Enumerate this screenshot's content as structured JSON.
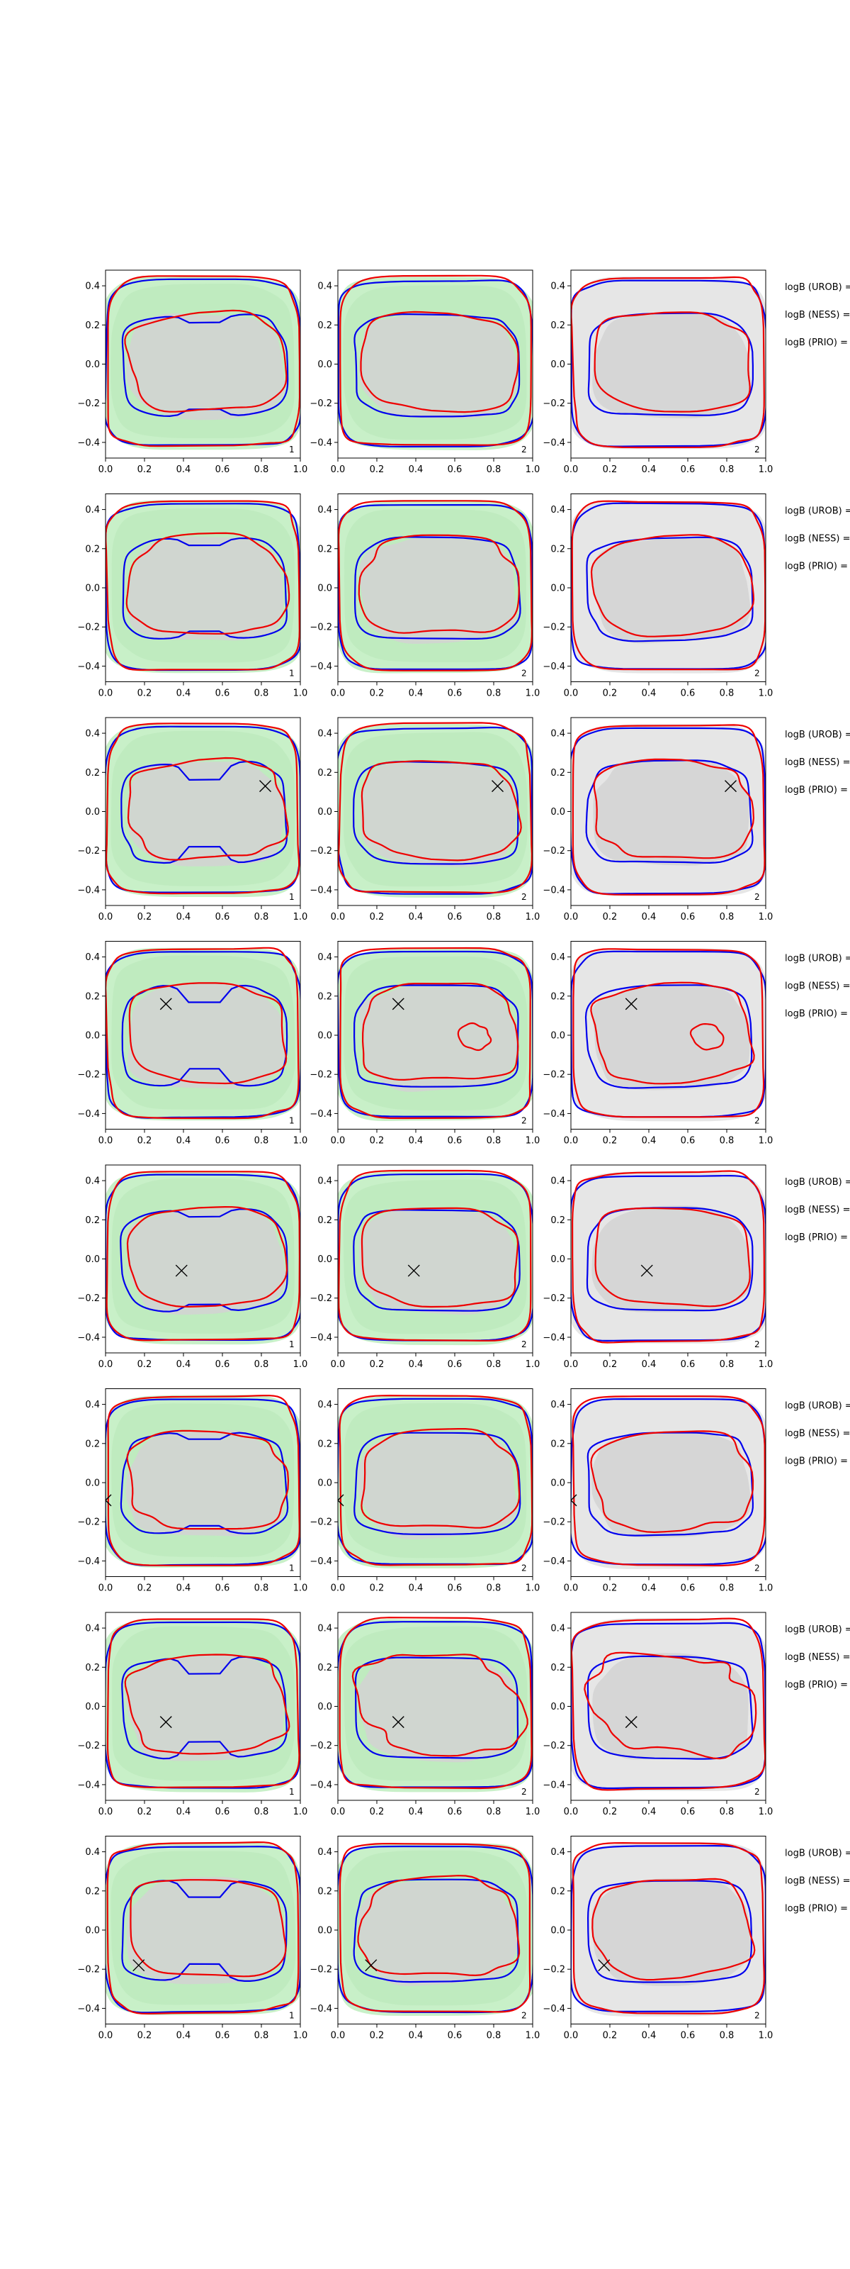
{
  "chart_data": {
    "type": "contour",
    "grid": {
      "rows": 8,
      "cols": 3
    },
    "x_ticks": [
      "0.0",
      "0.2",
      "0.4",
      "0.6",
      "0.8",
      "1.0"
    ],
    "y_ticks": [
      "0.4",
      "0.2",
      "0.0",
      "−0.2",
      "−0.4"
    ],
    "xlim": [
      0.0,
      1.0
    ],
    "ylim": [
      -0.48,
      0.48
    ],
    "panel_tags": [
      "1",
      "2",
      "2"
    ],
    "row_labels": [
      "logB (UROB) =",
      "logB (NESS) =",
      "logB (PRIO) ="
    ],
    "markers": [
      null,
      null,
      {
        "x": 0.82,
        "y": 0.13
      },
      {
        "x": 0.31,
        "y": 0.16
      },
      {
        "x": 0.39,
        "y": -0.06
      },
      {
        "x": 0.0,
        "y": -0.09
      },
      {
        "x": 0.31,
        "y": -0.08
      },
      {
        "x": 0.17,
        "y": -0.18
      }
    ],
    "colors": {
      "blue": "#0000ee",
      "red": "#ee0000",
      "green_fill": "#c8f0c8",
      "gray_fill": "#d2d2d2",
      "panel_bg_gray": "#e6e6e6"
    }
  }
}
